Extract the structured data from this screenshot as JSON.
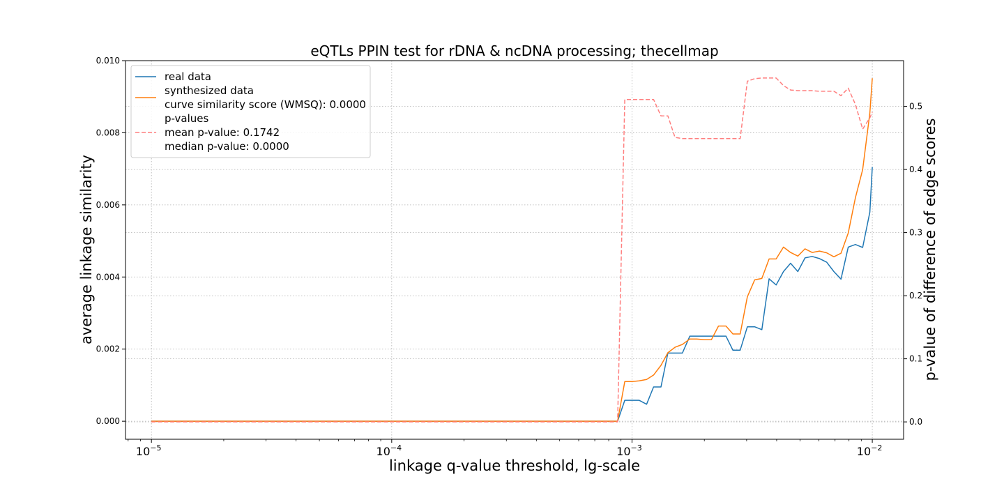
{
  "chart_data": {
    "type": "line",
    "title": "eQTLs PPIN test for rDNA & ncDNA processing; thecellmap",
    "xlabel": "linkage q-value threshold, lg-scale",
    "ylabel": "average linkage similarity",
    "y2label": "p-value of difference of edge scores",
    "xscale": "log10",
    "xlim": [
      7.8e-06,
      0.0135
    ],
    "ylim": [
      -0.0005,
      0.01
    ],
    "y2lim": [
      -0.0275,
      0.5725
    ],
    "grid": true,
    "legend_position": "upper-left",
    "xticks": [
      {
        "value": 1e-05,
        "base": "10",
        "exp": "−5"
      },
      {
        "value": 0.0001,
        "base": "10",
        "exp": "−4"
      },
      {
        "value": 0.001,
        "base": "10",
        "exp": "−3"
      },
      {
        "value": 0.01,
        "base": "10",
        "exp": "−2"
      }
    ],
    "yticks": [
      {
        "value": 0.0,
        "label": "0.000"
      },
      {
        "value": 0.002,
        "label": "0.002"
      },
      {
        "value": 0.004,
        "label": "0.004"
      },
      {
        "value": 0.006,
        "label": "0.006"
      },
      {
        "value": 0.008,
        "label": "0.008"
      },
      {
        "value": 0.01,
        "label": "0.010"
      }
    ],
    "y2ticks": [
      {
        "value": 0.0,
        "label": "0.0"
      },
      {
        "value": 0.1,
        "label": "0.1"
      },
      {
        "value": 0.2,
        "label": "0.2"
      },
      {
        "value": 0.3,
        "label": "0.3"
      },
      {
        "value": 0.4,
        "label": "0.4"
      },
      {
        "value": 0.5,
        "label": "0.5"
      }
    ],
    "legend": [
      {
        "series": "real",
        "lines": [
          "real data"
        ]
      },
      {
        "series": "synthesized",
        "lines": [
          "synthesized data",
          "curve similarity score (WMSQ): 0.0000"
        ]
      },
      {
        "series": "pvalues",
        "lines": [
          "p-values",
          "mean p-value: 0.1742",
          "median p-value: 0.0000"
        ]
      }
    ],
    "series": [
      {
        "key": "real",
        "name": "real data",
        "color": "#1f77b4",
        "axis": "left",
        "x": [
          1e-05,
          0.000871,
          0.000933,
          0.001,
          0.00107,
          0.00115,
          0.00123,
          0.00132,
          0.00141,
          0.00151,
          0.00162,
          0.00174,
          0.00186,
          0.002,
          0.00214,
          0.00229,
          0.00246,
          0.00263,
          0.00282,
          0.00302,
          0.00324,
          0.00347,
          0.00372,
          0.00398,
          0.00427,
          0.00457,
          0.0049,
          0.00525,
          0.00562,
          0.00603,
          0.00646,
          0.00692,
          0.00741,
          0.00794,
          0.00851,
          0.00912,
          0.00977,
          0.01
        ],
        "y": [
          0.0,
          0.0,
          0.00058,
          0.00058,
          0.00058,
          0.00047,
          0.00095,
          0.00095,
          0.00189,
          0.00189,
          0.00189,
          0.00236,
          0.00236,
          0.00236,
          0.00236,
          0.00236,
          0.00236,
          0.00197,
          0.00197,
          0.00262,
          0.00262,
          0.00254,
          0.00395,
          0.00378,
          0.00415,
          0.00438,
          0.00415,
          0.00453,
          0.00457,
          0.00451,
          0.00441,
          0.00415,
          0.00394,
          0.00483,
          0.0049,
          0.00482,
          0.0058,
          0.00705
        ]
      },
      {
        "key": "synthesized",
        "name": "synthesized data",
        "color": "#ff7f0e",
        "axis": "left",
        "x": [
          1e-05,
          0.000871,
          0.000933,
          0.001,
          0.00107,
          0.00115,
          0.00123,
          0.00132,
          0.00141,
          0.00151,
          0.00162,
          0.00174,
          0.00186,
          0.002,
          0.00214,
          0.00229,
          0.00246,
          0.00263,
          0.00282,
          0.00302,
          0.00324,
          0.00347,
          0.00372,
          0.00398,
          0.00427,
          0.00457,
          0.0049,
          0.00525,
          0.00562,
          0.00603,
          0.00646,
          0.00692,
          0.00741,
          0.00794,
          0.00851,
          0.00912,
          0.00977,
          0.01
        ],
        "y": [
          0.0,
          0.0,
          0.0011,
          0.0011,
          0.00112,
          0.00116,
          0.00128,
          0.00155,
          0.0019,
          0.00205,
          0.00213,
          0.00228,
          0.00228,
          0.00226,
          0.00226,
          0.00264,
          0.00264,
          0.00242,
          0.00242,
          0.00345,
          0.00392,
          0.00396,
          0.0045,
          0.0045,
          0.00483,
          0.00468,
          0.00458,
          0.00478,
          0.00468,
          0.00472,
          0.00467,
          0.00456,
          0.00466,
          0.00522,
          0.0062,
          0.00698,
          0.00855,
          0.00951
        ]
      },
      {
        "key": "pvalues",
        "name": "p-values",
        "color": "#ff7f7f",
        "axis": "right",
        "dashed": true,
        "x": [
          1e-05,
          0.000871,
          0.000933,
          0.001,
          0.00107,
          0.00115,
          0.00123,
          0.00132,
          0.00141,
          0.00151,
          0.00162,
          0.00174,
          0.00186,
          0.002,
          0.00214,
          0.00229,
          0.00246,
          0.00263,
          0.00282,
          0.00302,
          0.00324,
          0.00347,
          0.00372,
          0.00398,
          0.00427,
          0.00457,
          0.0049,
          0.00525,
          0.00562,
          0.00603,
          0.00646,
          0.00692,
          0.00741,
          0.00794,
          0.00851,
          0.00912,
          0.00977,
          0.01
        ],
        "y": [
          0.0,
          0.0,
          0.511,
          0.511,
          0.511,
          0.511,
          0.511,
          0.485,
          0.485,
          0.451,
          0.449,
          0.449,
          0.449,
          0.449,
          0.449,
          0.449,
          0.449,
          0.449,
          0.449,
          0.54,
          0.544,
          0.545,
          0.545,
          0.545,
          0.533,
          0.526,
          0.525,
          0.525,
          0.525,
          0.524,
          0.524,
          0.524,
          0.517,
          0.529,
          0.503,
          0.464,
          0.482,
          0.491
        ]
      }
    ]
  }
}
